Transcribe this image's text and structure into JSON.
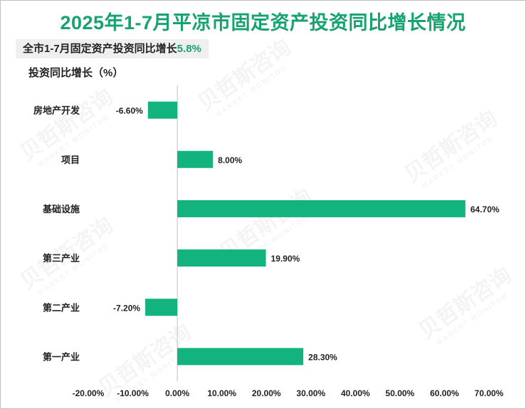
{
  "header": {
    "title": "2025年1-7月平凉市固定资产投资同比增长情况",
    "subtitle_prefix": "全市1-7月固定资产投资同比增长",
    "subtitle_value": "5.8%"
  },
  "watermark": {
    "brand": "贝哲斯咨询",
    "brand_en": "MARKET MONITOR"
  },
  "colors": {
    "bar": "#12b37e",
    "title": "#16a36f",
    "axis": "#bfbfbf"
  },
  "chart_data": {
    "type": "bar",
    "orientation": "horizontal",
    "title": "2025年1-7月平凉市固定资产投资同比增长情况",
    "ylabel": "投资同比增长（%）",
    "categories": [
      "房地产开发",
      "项目",
      "基础设施",
      "第三产业",
      "第二产业",
      "第一产业"
    ],
    "values": [
      -6.6,
      8.0,
      64.7,
      19.9,
      -7.2,
      28.3
    ],
    "value_labels": [
      "-6.60%",
      "8.00%",
      "64.70%",
      "19.90%",
      "-7.20%",
      "28.30%"
    ],
    "xlim": [
      -20,
      70
    ],
    "x_ticks": [
      -20,
      -10,
      0,
      10,
      20,
      30,
      40,
      50,
      60,
      70
    ],
    "x_tick_labels": [
      "-20.00%",
      "-10.00%",
      "0.00%",
      "10.00%",
      "20.00%",
      "30.00%",
      "40.00%",
      "50.00%",
      "60.00%",
      "70.00%"
    ],
    "grid": false,
    "legend": "none"
  }
}
